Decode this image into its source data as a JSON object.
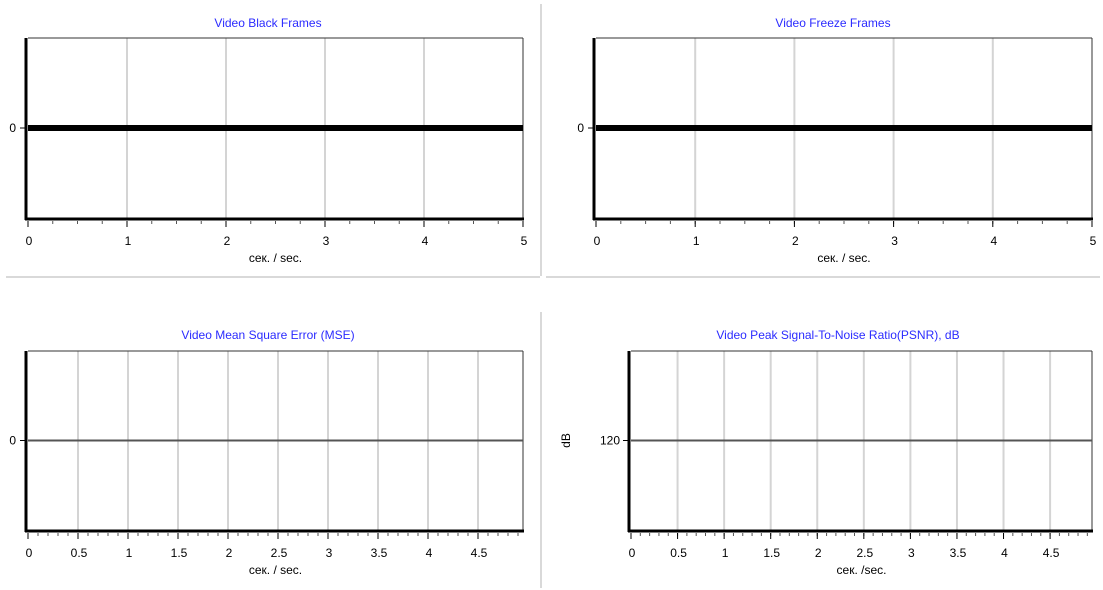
{
  "chart_data": [
    {
      "type": "line",
      "title": "Video Black Frames",
      "xlabel": "сек. / sec.",
      "ylabel": "",
      "x_ticks": [
        0,
        1,
        2,
        3,
        4,
        5
      ],
      "x_tick_labels": [
        "0",
        "1",
        "2",
        "3",
        "4",
        "5"
      ],
      "x_minor_step": 0.25,
      "xlim": [
        0,
        5
      ],
      "y_ticks": [
        0
      ],
      "y_tick_labels": [
        "0"
      ],
      "ylim": [
        -1,
        1
      ],
      "grid": "vertical",
      "series": [
        {
          "x": [
            0,
            5
          ],
          "values": [
            0,
            0
          ],
          "color": "#000000",
          "style": "thick"
        }
      ]
    },
    {
      "type": "line",
      "title": "Video Freeze Frames",
      "xlabel": "сек. / sec.",
      "ylabel": "",
      "x_ticks": [
        0,
        1,
        2,
        3,
        4,
        5
      ],
      "x_tick_labels": [
        "0",
        "1",
        "2",
        "3",
        "4",
        "5"
      ],
      "x_minor_step": 0.25,
      "xlim": [
        0,
        5
      ],
      "y_ticks": [
        0
      ],
      "y_tick_labels": [
        "0"
      ],
      "ylim": [
        -1,
        1
      ],
      "grid": "vertical",
      "series": [
        {
          "x": [
            0,
            5
          ],
          "values": [
            0,
            0
          ],
          "color": "#000000",
          "style": "thick"
        }
      ]
    },
    {
      "type": "line",
      "title": "Video Mean Square Error (MSE)",
      "xlabel": "сек. / sec.",
      "ylabel": "",
      "x_ticks": [
        0,
        0.5,
        1,
        1.5,
        2,
        2.5,
        3,
        3.5,
        4,
        4.5
      ],
      "x_tick_labels": [
        "0",
        "0.5",
        "1",
        "1.5",
        "2",
        "2.5",
        "3",
        "3.5",
        "4",
        "4.5"
      ],
      "x_minor_step": 0.1,
      "xlim": [
        0,
        4.95
      ],
      "y_ticks": [
        0
      ],
      "y_tick_labels": [
        "0"
      ],
      "ylim": [
        -1,
        1
      ],
      "grid": "vertical",
      "series": [
        {
          "x": [
            0,
            4.95
          ],
          "values": [
            0,
            0
          ],
          "color": "#555555",
          "style": "thin"
        }
      ]
    },
    {
      "type": "line",
      "title": "Video Peak Signal-To-Noise Ratio(PSNR), dB",
      "xlabel": "сек. /sec.",
      "ylabel": "dB",
      "x_ticks": [
        0,
        0.5,
        1,
        1.5,
        2,
        2.5,
        3,
        3.5,
        4,
        4.5
      ],
      "x_tick_labels": [
        "0",
        "0.5",
        "1",
        "1.5",
        "2",
        "2.5",
        "3",
        "3.5",
        "4",
        "4.5"
      ],
      "x_minor_step": 0.1,
      "xlim": [
        0,
        4.95
      ],
      "y_ticks": [
        120
      ],
      "y_tick_labels": [
        "120"
      ],
      "ylim": [
        119,
        121
      ],
      "grid": "vertical",
      "series": [
        {
          "x": [
            0,
            4.95
          ],
          "values": [
            120,
            120
          ],
          "color": "#555555",
          "style": "thin"
        }
      ]
    }
  ]
}
